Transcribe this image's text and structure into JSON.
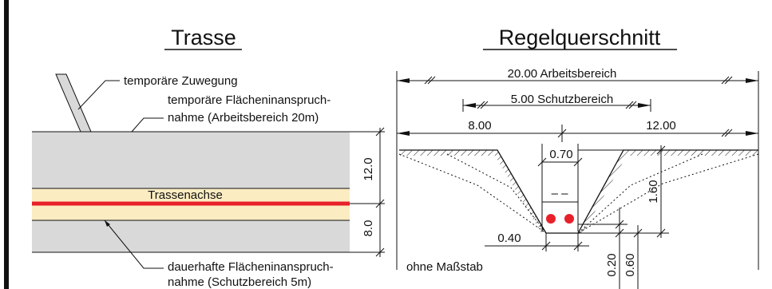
{
  "left_panel": {
    "title": "Trasse",
    "labels": {
      "temp_access": "temporäre Zuwegung",
      "temp_area_1": "temporäre Flächeninanspruch-",
      "temp_area_2": "nahme (Arbeitsbereich 20m)",
      "axis": "Trassenachse",
      "perm_area_1": "dauerhafte Flächeninanspruch-",
      "perm_area_2": "nahme (Schutzbereich 5m)"
    },
    "dims": {
      "upper": "12.0",
      "lower": "8.0"
    },
    "colors": {
      "band": "#d9d9d9",
      "protection": "#fbecc2",
      "axis": "#e8202a"
    }
  },
  "right_panel": {
    "title": "Regelquerschnitt",
    "dims": {
      "working": "20.00 Arbeitsbereich",
      "protection": "5.00 Schutzbereich",
      "left": "8.00",
      "right": "12.00",
      "top_width": "0.70",
      "depth": "1.60",
      "bottom_width": "0.40",
      "cover_1": "0.20",
      "cover_2": "0.60",
      "marker": "– –"
    },
    "note": "ohne Maßstab",
    "colors": {
      "cable": "#e8202a"
    }
  }
}
